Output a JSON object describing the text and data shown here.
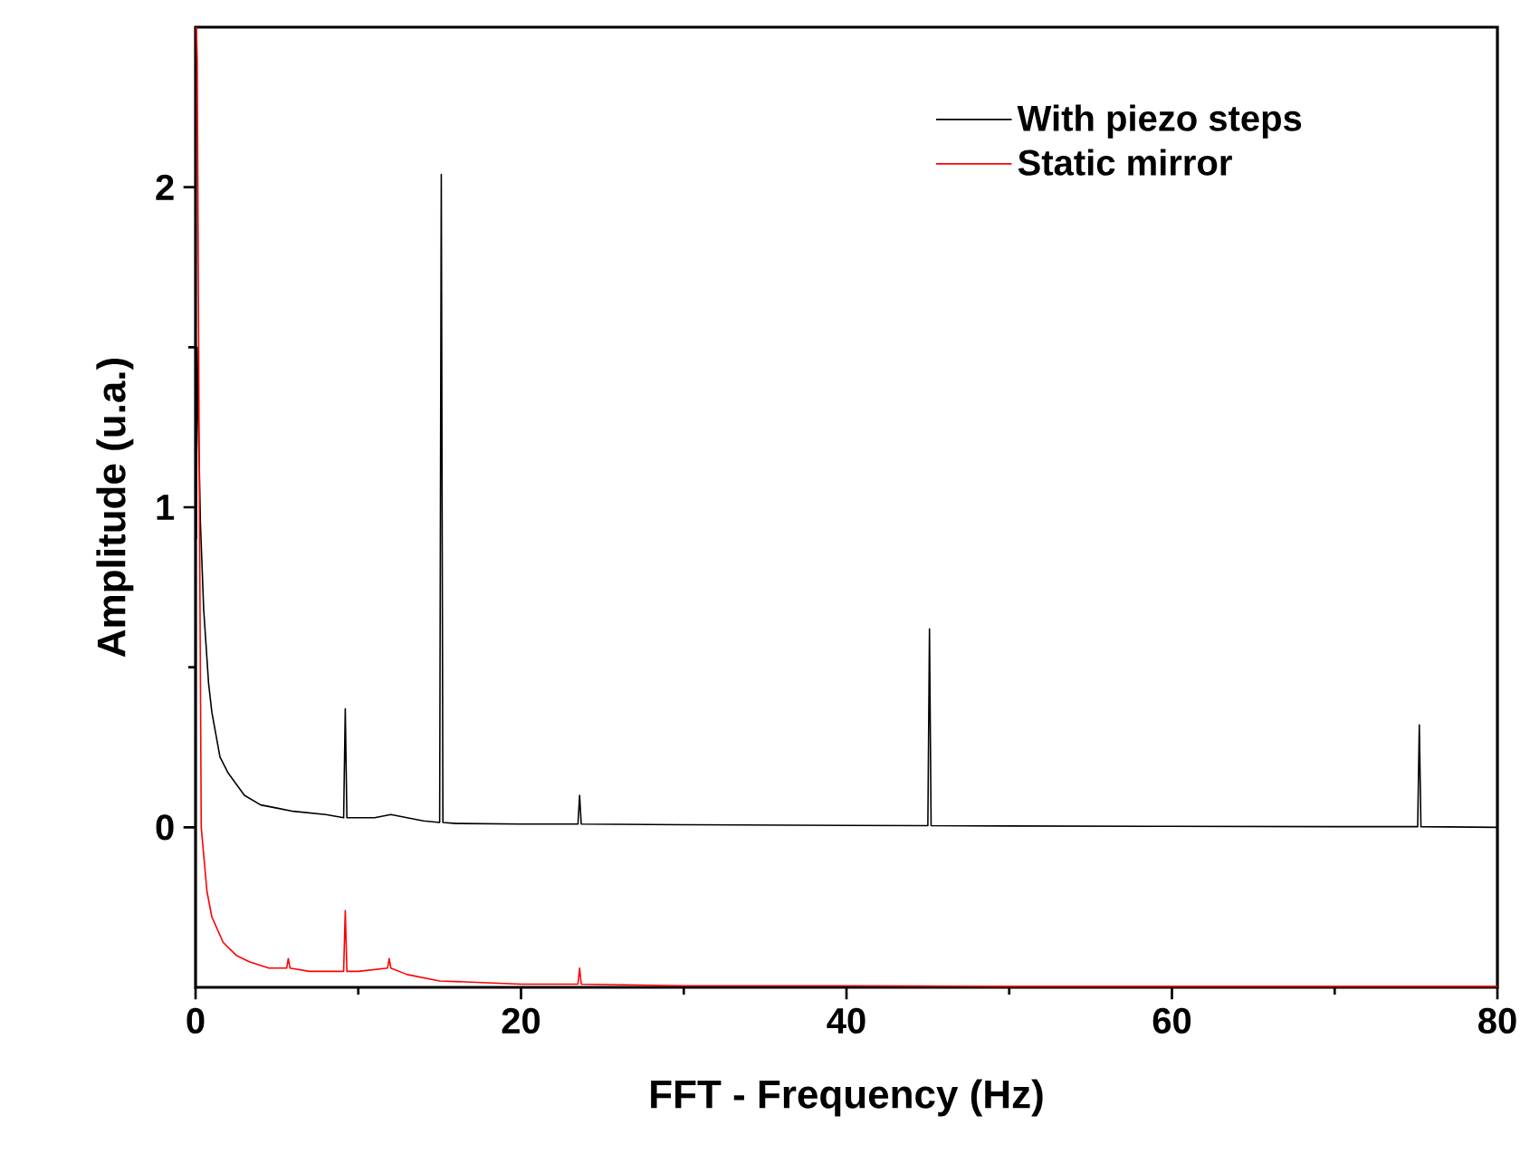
{
  "chart_data": {
    "type": "line",
    "xlabel": "FFT - Frequency (Hz)",
    "ylabel": "Amplitude (u.a.)",
    "xlim": [
      0,
      80
    ],
    "ylim": [
      -0.5,
      2.5
    ],
    "xticks": [
      0,
      20,
      40,
      60,
      80
    ],
    "yticks": [
      0,
      1,
      2
    ],
    "legend": "top right",
    "marker": "none",
    "line_style": "solid",
    "grid": false,
    "series": [
      {
        "name": "With piezo steps",
        "color": "#000000",
        "x": [
          0.05,
          0.1,
          0.2,
          0.3,
          0.5,
          0.8,
          1.0,
          1.5,
          2,
          3,
          4,
          5,
          6,
          7,
          8,
          9.1,
          9.2,
          9.3,
          10,
          11,
          12,
          13,
          14,
          15,
          15.1,
          15.2,
          16,
          20,
          23.5,
          23.6,
          23.7,
          30,
          40,
          45,
          45.1,
          45.2,
          50,
          60,
          70,
          75.1,
          75.2,
          75.3,
          80
        ],
        "values": [
          0.9,
          1.5,
          1.2,
          0.95,
          0.68,
          0.45,
          0.36,
          0.22,
          0.17,
          0.1,
          0.07,
          0.06,
          0.05,
          0.045,
          0.04,
          0.03,
          0.37,
          0.03,
          0.03,
          0.03,
          0.04,
          0.03,
          0.02,
          0.015,
          2.04,
          0.015,
          0.012,
          0.01,
          0.01,
          0.1,
          0.01,
          0.008,
          0.006,
          0.005,
          0.62,
          0.005,
          0.004,
          0.003,
          0.002,
          0.002,
          0.32,
          0.002,
          0.0
        ]
      },
      {
        "name": "Static mirror",
        "color": "#ff0000",
        "x": [
          0.05,
          0.1,
          0.15,
          0.25,
          0.35,
          0.7,
          1.0,
          1.7,
          2.5,
          3.3,
          4.5,
          5.6,
          5.7,
          5.8,
          7,
          8,
          9.1,
          9.2,
          9.3,
          10,
          11.8,
          11.9,
          12.0,
          13,
          15,
          20,
          23.5,
          23.6,
          23.7,
          30,
          40,
          50,
          60,
          70,
          80
        ],
        "values": [
          2.5,
          2.4,
          1.9,
          0.9,
          0.0,
          -0.2,
          -0.28,
          -0.36,
          -0.4,
          -0.42,
          -0.44,
          -0.44,
          -0.41,
          -0.44,
          -0.45,
          -0.45,
          -0.45,
          -0.26,
          -0.45,
          -0.45,
          -0.44,
          -0.41,
          -0.44,
          -0.46,
          -0.48,
          -0.49,
          -0.49,
          -0.44,
          -0.49,
          -0.495,
          -0.495,
          -0.497,
          -0.497,
          -0.497,
          -0.497
        ]
      }
    ]
  }
}
